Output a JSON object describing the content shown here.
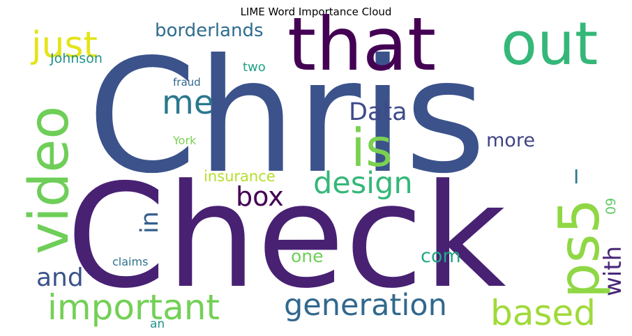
{
  "chart_data": {
    "type": "wordcloud",
    "title": "LIME Word Importance Cloud",
    "words": [
      {
        "text": "Chris",
        "color": "#3b528b"
      },
      {
        "text": "Check",
        "color": "#482173"
      },
      {
        "text": "that",
        "color": "#440154"
      },
      {
        "text": "out",
        "color": "#35b779"
      },
      {
        "text": "video",
        "color": "#6ece58"
      },
      {
        "text": "ps5",
        "color": "#8fd744"
      },
      {
        "text": "is",
        "color": "#7ad151"
      },
      {
        "text": "important",
        "color": "#73d056"
      },
      {
        "text": "generation",
        "color": "#31688e"
      },
      {
        "text": "design",
        "color": "#35b779"
      },
      {
        "text": "based",
        "color": "#a0da39"
      },
      {
        "text": "just",
        "color": "#e4e419"
      },
      {
        "text": "me",
        "color": "#2a788e"
      },
      {
        "text": "Data",
        "color": "#3e4a89"
      },
      {
        "text": "box",
        "color": "#440154"
      },
      {
        "text": "borderlands",
        "color": "#2f6c8e"
      },
      {
        "text": "and",
        "color": "#3b528b"
      },
      {
        "text": "in",
        "color": "#355f8d"
      },
      {
        "text": "with",
        "color": "#482878"
      },
      {
        "text": "more",
        "color": "#414487"
      },
      {
        "text": "com",
        "color": "#22a884"
      },
      {
        "text": "one",
        "color": "#6ece58"
      },
      {
        "text": "insurance",
        "color": "#b5de2b"
      },
      {
        "text": "Johnson",
        "color": "#21918c"
      },
      {
        "text": "two",
        "color": "#1fa187"
      },
      {
        "text": "fraud",
        "color": "#31688e"
      },
      {
        "text": "York",
        "color": "#7ad151"
      },
      {
        "text": "claims",
        "color": "#2c728e"
      },
      {
        "text": "an",
        "color": "#21918c"
      },
      {
        "text": "I",
        "color": "#2a788e"
      },
      {
        "text": "09",
        "color": "#5ec962"
      }
    ]
  }
}
